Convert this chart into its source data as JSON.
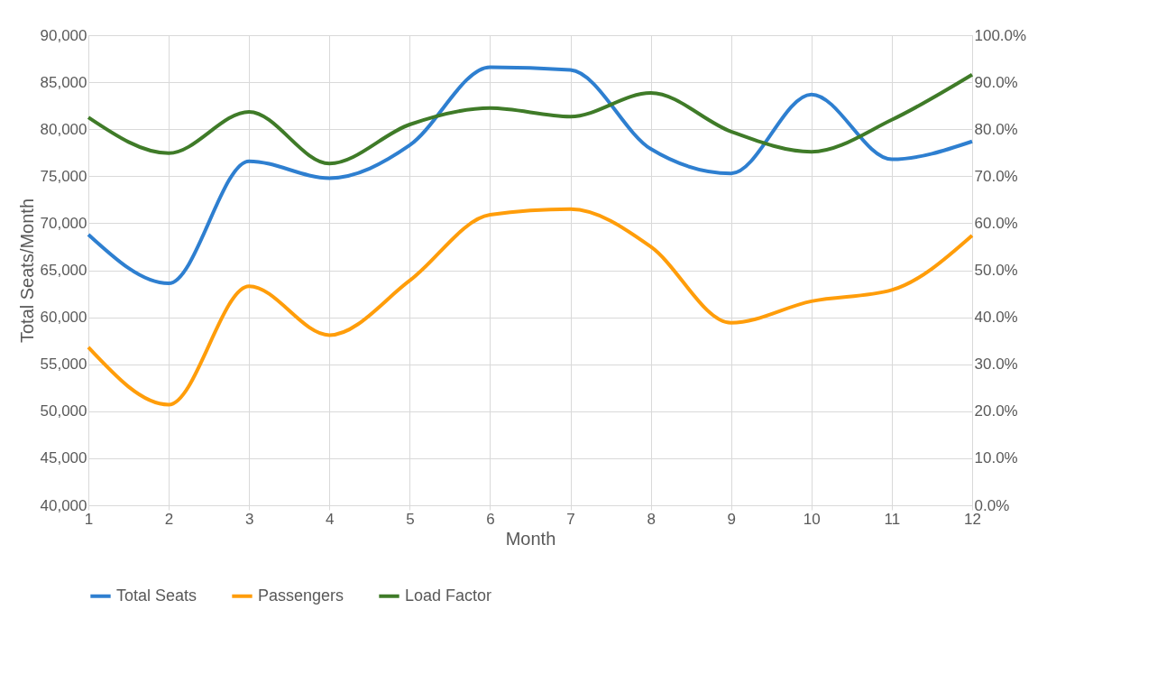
{
  "chart_data": {
    "type": "line",
    "xlabel": "Month",
    "ylabel": "Total Seats/Month",
    "x": [
      1,
      2,
      3,
      4,
      5,
      6,
      7,
      8,
      9,
      10,
      11,
      12
    ],
    "xlim": [
      1,
      12
    ],
    "xticks": [
      1,
      2,
      3,
      4,
      5,
      6,
      7,
      8,
      9,
      10,
      11,
      12
    ],
    "ylim": [
      40000,
      90000
    ],
    "yticks": [
      {
        "value": 40000,
        "label": "40,000"
      },
      {
        "value": 45000,
        "label": "45,000"
      },
      {
        "value": 50000,
        "label": "50,000"
      },
      {
        "value": 55000,
        "label": "55,000"
      },
      {
        "value": 60000,
        "label": "60,000"
      },
      {
        "value": 65000,
        "label": "65,000"
      },
      {
        "value": 70000,
        "label": "70,000"
      },
      {
        "value": 75000,
        "label": "75,000"
      },
      {
        "value": 80000,
        "label": "80,000"
      },
      {
        "value": 85000,
        "label": "85,000"
      },
      {
        "value": 90000,
        "label": "90,000"
      }
    ],
    "y2lim": [
      0,
      100
    ],
    "y2ticks": [
      {
        "value": 0,
        "label": "0.0%"
      },
      {
        "value": 10,
        "label": "10.0%"
      },
      {
        "value": 20,
        "label": "20.0%"
      },
      {
        "value": 30,
        "label": "30.0%"
      },
      {
        "value": 40,
        "label": "40.0%"
      },
      {
        "value": 50,
        "label": "50.0%"
      },
      {
        "value": 60,
        "label": "60.0%"
      },
      {
        "value": 70,
        "label": "70.0%"
      },
      {
        "value": 80,
        "label": "80.0%"
      },
      {
        "value": 90,
        "label": "90.0%"
      },
      {
        "value": 100,
        "label": "100.0%"
      }
    ],
    "series": [
      {
        "name": "Total Seats",
        "color": "#2e7fd0",
        "values": [
          68800,
          63600,
          76600,
          74800,
          78300,
          86600,
          86300,
          77900,
          75300,
          83700,
          76800,
          78700
        ]
      },
      {
        "name": "Passengers",
        "color": "#ff9d0a",
        "values": [
          56800,
          50700,
          63300,
          58100,
          63900,
          70900,
          71500,
          67500,
          59400,
          61700,
          62900,
          68700
        ]
      },
      {
        "name": "Load Factor",
        "color": "#3f7b28",
        "axis": "y2",
        "values": [
          82.5,
          74.9,
          83.7,
          72.7,
          81.0,
          84.5,
          82.7,
          87.7,
          79.5,
          75.2,
          82.0,
          91.6
        ]
      }
    ],
    "grid": true,
    "legend": "bottom",
    "marker": "none",
    "line_style": "solid"
  }
}
